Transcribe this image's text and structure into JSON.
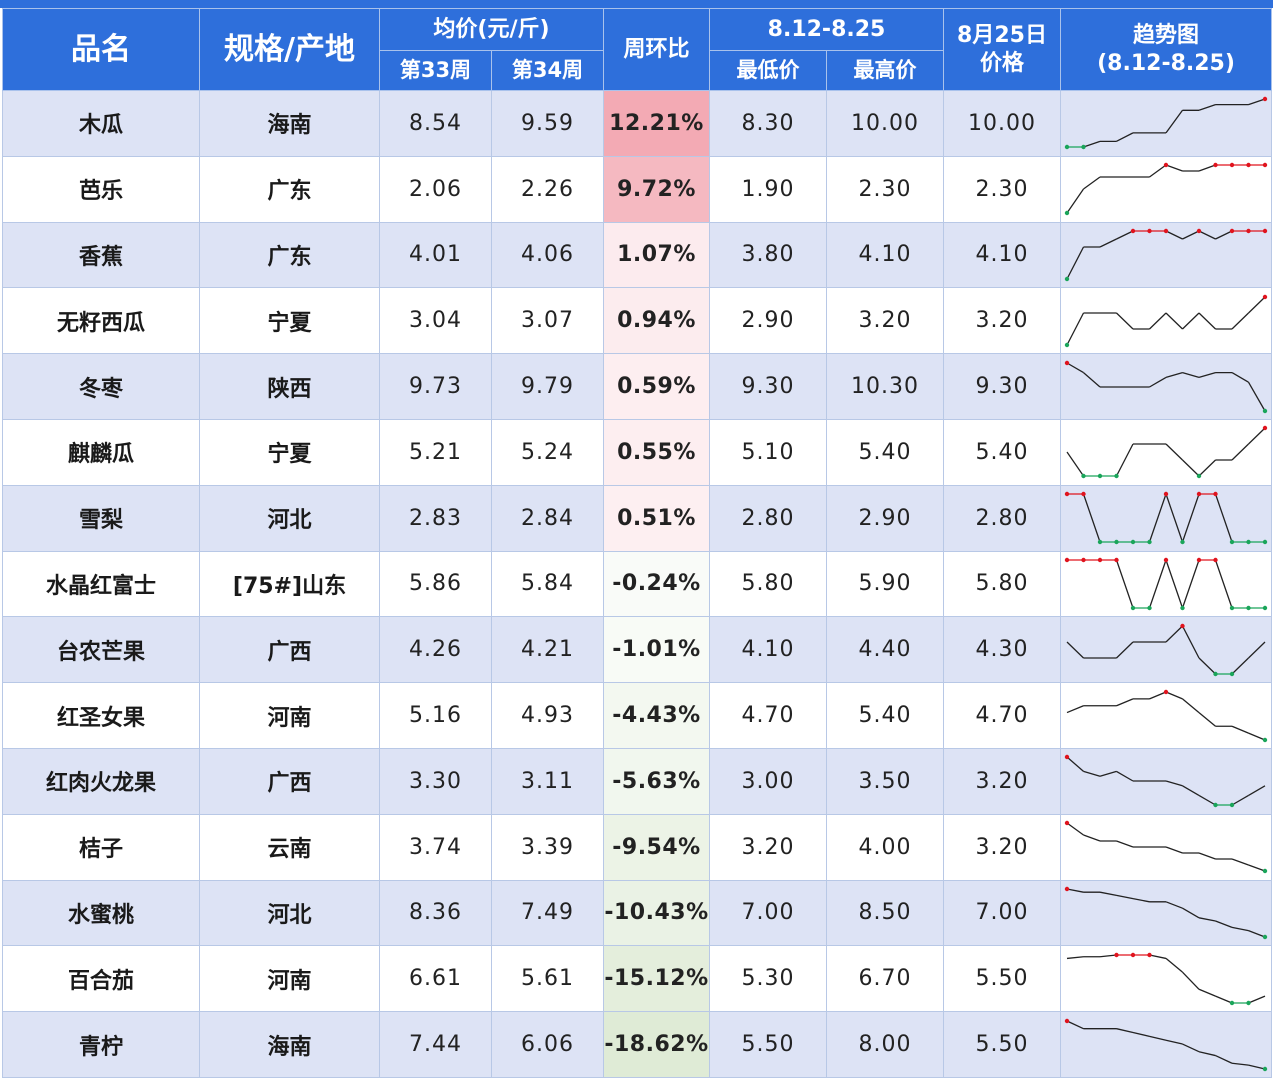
{
  "header": {
    "name": "品名",
    "spec": "规格/产地",
    "avg": "均价(元/斤)",
    "wk33": "第33周",
    "wk34": "第34周",
    "wow": "周环比",
    "range": "8.12-8.25",
    "low": "最低价",
    "high": "最高价",
    "aug25_line1": "8月25日",
    "aug25_line2": "价格",
    "trend_line1": "趋势图",
    "trend_line2": "(8.12-8.25)"
  },
  "colors": {
    "header_bg": "#2e6fdb",
    "low_text": "#1aa55a",
    "high_text": "#e0141e",
    "row_alt": "#dde3f5"
  },
  "rows": [
    {
      "name": "木瓜",
      "origin": "海南",
      "w33": "8.54",
      "w34": "9.59",
      "wow": "12.21%",
      "wow_value": 12.21,
      "low": "8.30",
      "high": "10.00",
      "price": "10.00",
      "trend": [
        8.3,
        8.3,
        8.5,
        8.5,
        8.8,
        8.8,
        8.8,
        9.6,
        9.6,
        9.8,
        9.8,
        9.8,
        10.0
      ]
    },
    {
      "name": "芭乐",
      "origin": "广东",
      "w33": "2.06",
      "w34": "2.26",
      "wow": "9.72%",
      "wow_value": 9.72,
      "low": "1.90",
      "high": "2.30",
      "price": "2.30",
      "trend": [
        1.9,
        2.1,
        2.2,
        2.2,
        2.2,
        2.2,
        2.3,
        2.25,
        2.25,
        2.3,
        2.3,
        2.3,
        2.3
      ]
    },
    {
      "name": "香蕉",
      "origin": "广东",
      "w33": "4.01",
      "w34": "4.06",
      "wow": "1.07%",
      "wow_value": 1.07,
      "low": "3.80",
      "high": "4.10",
      "price": "4.10",
      "trend": [
        3.8,
        4.0,
        4.0,
        4.05,
        4.1,
        4.1,
        4.1,
        4.05,
        4.1,
        4.05,
        4.1,
        4.1,
        4.1
      ]
    },
    {
      "name": "无籽西瓜",
      "origin": "宁夏",
      "w33": "3.04",
      "w34": "3.07",
      "wow": "0.94%",
      "wow_value": 0.94,
      "low": "2.90",
      "high": "3.20",
      "price": "3.20",
      "trend": [
        2.9,
        3.1,
        3.1,
        3.1,
        3.0,
        3.0,
        3.1,
        3.0,
        3.1,
        3.0,
        3.0,
        3.1,
        3.2
      ]
    },
    {
      "name": "冬枣",
      "origin": "陕西",
      "w33": "9.73",
      "w34": "9.79",
      "wow": "0.59%",
      "wow_value": 0.59,
      "low": "9.30",
      "high": "10.30",
      "price": "9.30",
      "trend": [
        10.3,
        10.1,
        9.8,
        9.8,
        9.8,
        9.8,
        10.0,
        10.1,
        10.0,
        10.1,
        10.1,
        9.9,
        9.3
      ]
    },
    {
      "name": "麒麟瓜",
      "origin": "宁夏",
      "w33": "5.21",
      "w34": "5.24",
      "wow": "0.55%",
      "wow_value": 0.55,
      "low": "5.10",
      "high": "5.40",
      "price": "5.40",
      "trend": [
        5.25,
        5.1,
        5.1,
        5.1,
        5.3,
        5.3,
        5.3,
        5.2,
        5.1,
        5.2,
        5.2,
        5.3,
        5.4
      ]
    },
    {
      "name": "雪梨",
      "origin": "河北",
      "w33": "2.83",
      "w34": "2.84",
      "wow": "0.51%",
      "wow_value": 0.51,
      "low": "2.80",
      "high": "2.90",
      "price": "2.80",
      "trend": [
        2.9,
        2.9,
        2.8,
        2.8,
        2.8,
        2.8,
        2.9,
        2.8,
        2.9,
        2.9,
        2.8,
        2.8,
        2.8
      ]
    },
    {
      "name": "水晶红富士",
      "origin": "[75#]山东",
      "w33": "5.86",
      "w34": "5.84",
      "wow": "-0.24%",
      "wow_value": -0.24,
      "low": "5.80",
      "high": "5.90",
      "price": "5.80",
      "trend": [
        5.9,
        5.9,
        5.9,
        5.9,
        5.8,
        5.8,
        5.9,
        5.8,
        5.9,
        5.9,
        5.8,
        5.8,
        5.8
      ]
    },
    {
      "name": "台农芒果",
      "origin": "广西",
      "w33": "4.26",
      "w34": "4.21",
      "wow": "-1.01%",
      "wow_value": -1.01,
      "low": "4.10",
      "high": "4.40",
      "price": "4.30",
      "trend": [
        4.3,
        4.2,
        4.2,
        4.2,
        4.3,
        4.3,
        4.3,
        4.4,
        4.2,
        4.1,
        4.1,
        4.2,
        4.3
      ]
    },
    {
      "name": "红圣女果",
      "origin": "河南",
      "w33": "5.16",
      "w34": "4.93",
      "wow": "-4.43%",
      "wow_value": -4.43,
      "low": "4.70",
      "high": "5.40",
      "price": "4.70",
      "trend": [
        5.1,
        5.2,
        5.2,
        5.2,
        5.3,
        5.3,
        5.4,
        5.3,
        5.1,
        4.9,
        4.9,
        4.8,
        4.7
      ]
    },
    {
      "name": "红肉火龙果",
      "origin": "广西",
      "w33": "3.30",
      "w34": "3.11",
      "wow": "-5.63%",
      "wow_value": -5.63,
      "low": "3.00",
      "high": "3.50",
      "price": "3.20",
      "trend": [
        3.5,
        3.35,
        3.3,
        3.35,
        3.25,
        3.25,
        3.25,
        3.2,
        3.1,
        3.0,
        3.0,
        3.1,
        3.2
      ]
    },
    {
      "name": "桔子",
      "origin": "云南",
      "w33": "3.74",
      "w34": "3.39",
      "wow": "-9.54%",
      "wow_value": -9.54,
      "low": "3.20",
      "high": "4.00",
      "price": "3.20",
      "trend": [
        4.0,
        3.8,
        3.7,
        3.7,
        3.6,
        3.6,
        3.6,
        3.5,
        3.5,
        3.4,
        3.4,
        3.3,
        3.2
      ]
    },
    {
      "name": "水蜜桃",
      "origin": "河北",
      "w33": "8.36",
      "w34": "7.49",
      "wow": "-10.43%",
      "wow_value": -10.43,
      "low": "7.00",
      "high": "8.50",
      "price": "7.00",
      "trend": [
        8.5,
        8.4,
        8.4,
        8.3,
        8.2,
        8.1,
        8.1,
        7.9,
        7.6,
        7.5,
        7.3,
        7.2,
        7.0
      ]
    },
    {
      "name": "百合茄",
      "origin": "河南",
      "w33": "6.61",
      "w34": "5.61",
      "wow": "-15.12%",
      "wow_value": -15.12,
      "low": "5.30",
      "high": "6.70",
      "price": "5.50",
      "trend": [
        6.6,
        6.65,
        6.65,
        6.7,
        6.7,
        6.7,
        6.6,
        6.2,
        5.7,
        5.5,
        5.3,
        5.3,
        5.5
      ]
    },
    {
      "name": "青柠",
      "origin": "海南",
      "w33": "7.44",
      "w34": "6.06",
      "wow": "-18.62%",
      "wow_value": -18.62,
      "low": "5.50",
      "high": "8.00",
      "price": "5.50",
      "trend": [
        8.0,
        7.6,
        7.6,
        7.6,
        7.4,
        7.2,
        7.0,
        6.8,
        6.4,
        6.2,
        5.8,
        5.7,
        5.5
      ]
    }
  ]
}
